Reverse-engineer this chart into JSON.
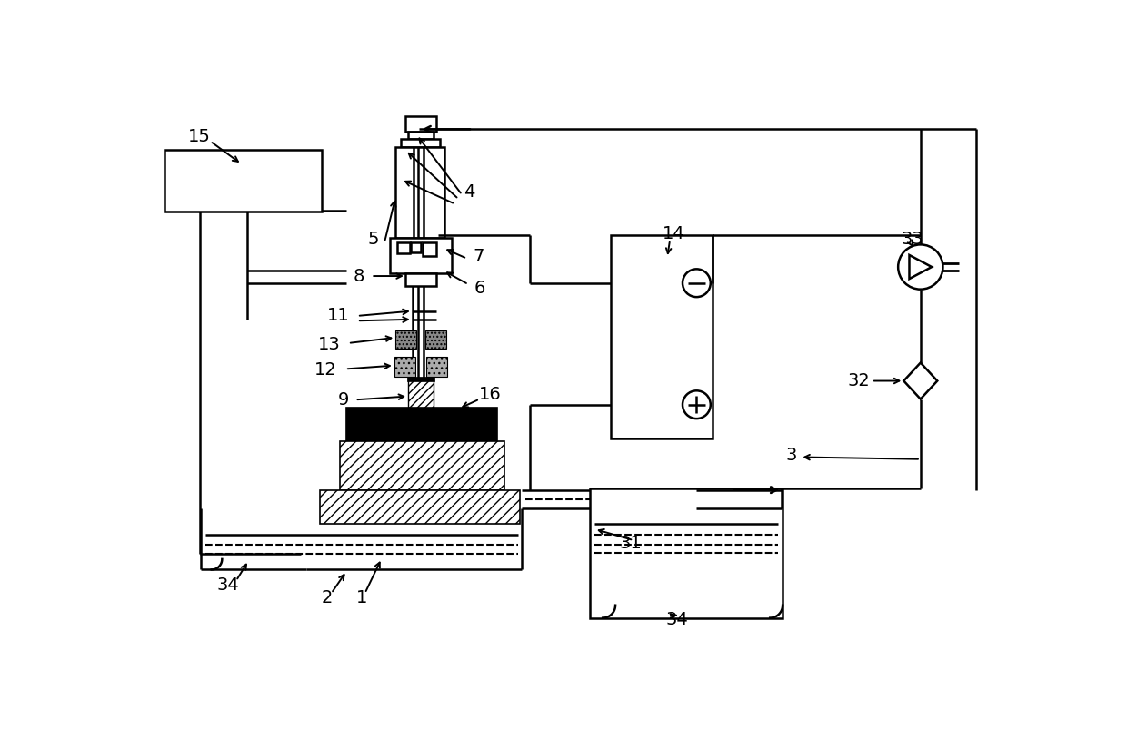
{
  "bg": "#ffffff",
  "lc": "#000000",
  "lw": 1.8,
  "fs": 14
}
